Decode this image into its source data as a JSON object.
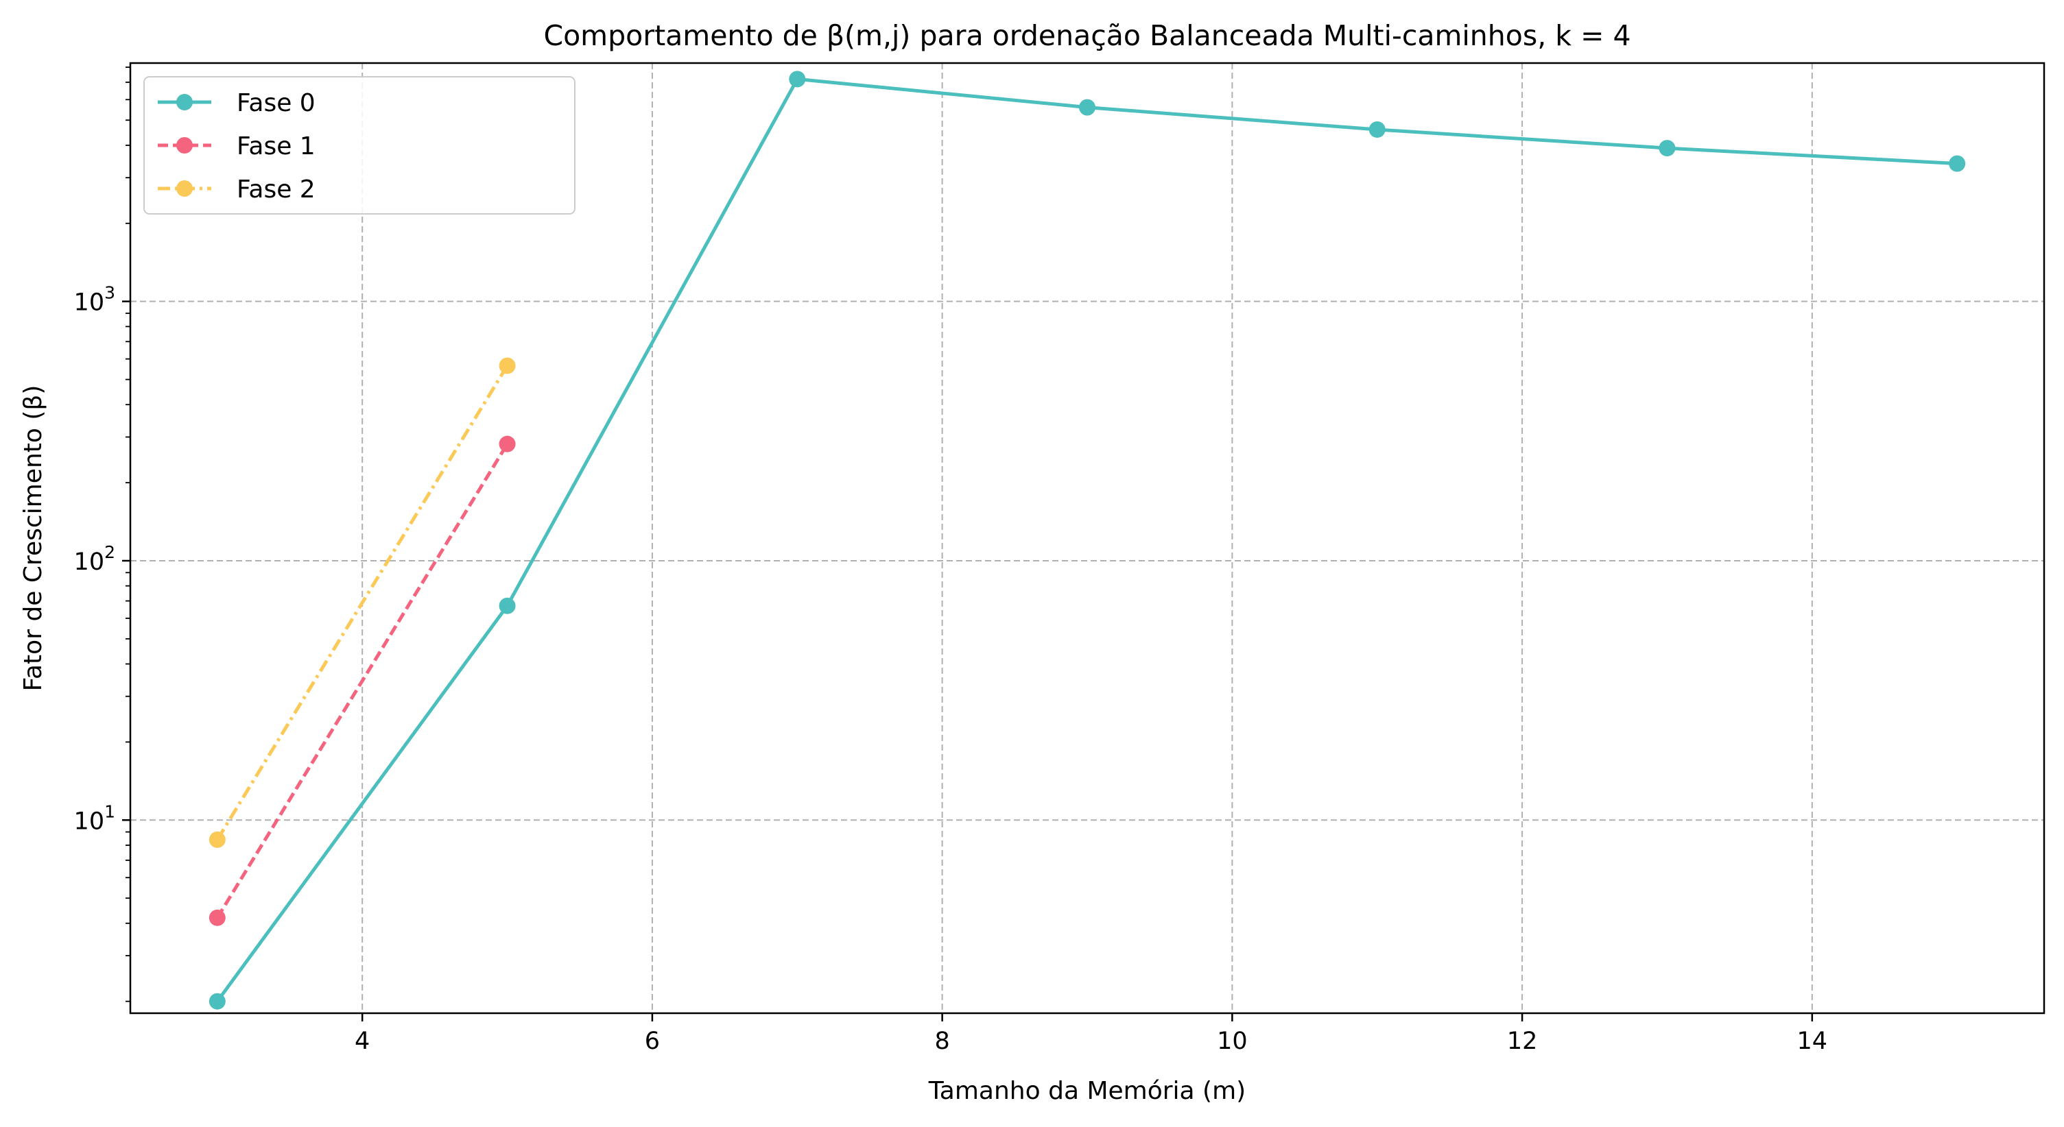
{
  "chart_data": {
    "type": "line",
    "title": "Comportamento de β(m,j) para ordenação Balanceada Multi-caminhos, k = 4",
    "xlabel": "Tamanho da Memória (m)",
    "ylabel": "Fator de Crescimento (β)",
    "xscale": "linear",
    "yscale": "log",
    "xlim": [
      2.4,
      15.6
    ],
    "ylim": [
      1.8,
      8300
    ],
    "xticks": [
      4,
      6,
      8,
      10,
      12,
      14
    ],
    "xtick_labels": [
      "4",
      "6",
      "8",
      "10",
      "12",
      "14"
    ],
    "yticks": [
      10,
      100,
      1000
    ],
    "ytick_labels": [
      {
        "base": "10",
        "exp": "1"
      },
      {
        "base": "10",
        "exp": "2"
      },
      {
        "base": "10",
        "exp": "3"
      }
    ],
    "grid": true,
    "legend_position": "top-left",
    "series": [
      {
        "name": "Fase 0",
        "color": "#4bbfbd",
        "line_style": "solid",
        "marker": "circle",
        "x": [
          3,
          5,
          7,
          9,
          11,
          13,
          15
        ],
        "y": [
          2,
          67,
          7200,
          5600,
          4600,
          3900,
          3400
        ]
      },
      {
        "name": "Fase 1",
        "color": "#f5647f",
        "line_style": "dashed",
        "marker": "circle",
        "x": [
          3,
          5
        ],
        "y": [
          4.2,
          282
        ]
      },
      {
        "name": "Fase 2",
        "color": "#fbc957",
        "line_style": "dash-dot",
        "marker": "circle",
        "x": [
          3,
          5
        ],
        "y": [
          8.4,
          565
        ]
      }
    ]
  }
}
